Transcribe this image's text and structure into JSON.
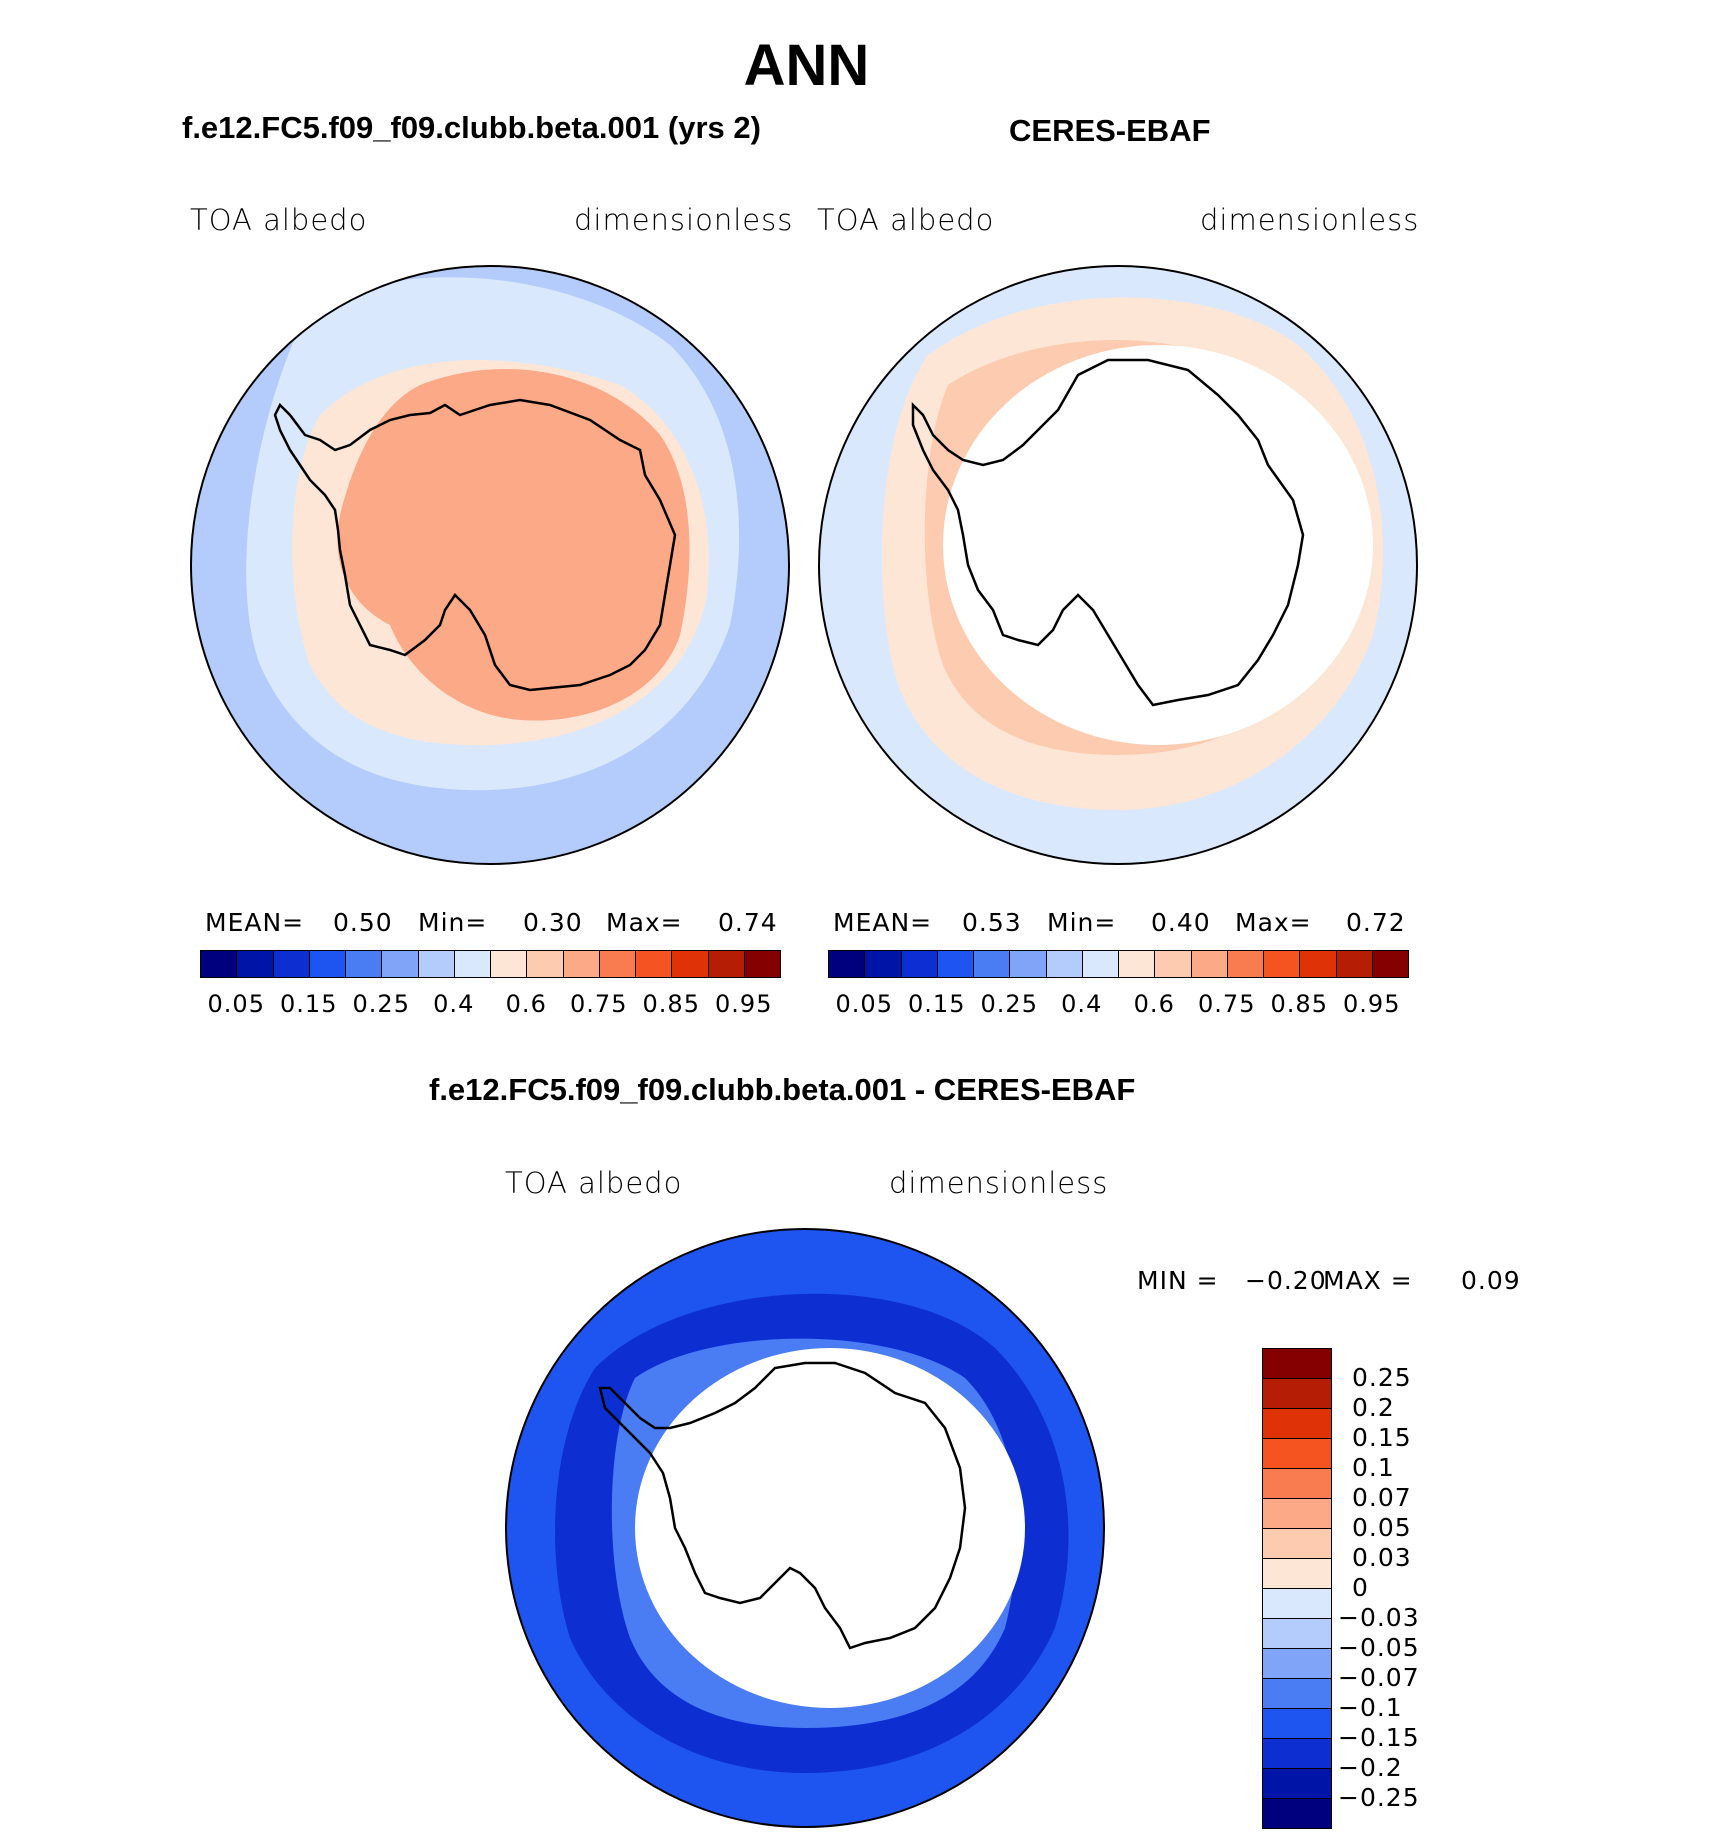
{
  "page": {
    "title": "ANN"
  },
  "panels": [
    {
      "case_title": "f.e12.FC5.f09_f09.clubb.beta.001 (yrs 2)",
      "variable": "TOA albedo",
      "units": "dimensionless",
      "stats": {
        "mean_label": "MEAN=",
        "mean": "0.50",
        "min_label": "Min=",
        "min": "0.30",
        "max_label": "Max=",
        "max": "0.74"
      }
    },
    {
      "case_title": "CERES-EBAF",
      "variable": "TOA albedo",
      "units": "dimensionless",
      "stats": {
        "mean_label": "MEAN=",
        "mean": "0.53",
        "min_label": "Min=",
        "min": "0.40",
        "max_label": "Max=",
        "max": "0.72"
      }
    }
  ],
  "diff_panel": {
    "case_title": "f.e12.FC5.f09_f09.clubb.beta.001 - CERES-EBAF",
    "variable": "TOA albedo",
    "units": "dimensionless",
    "stats": {
      "min_label": "MIN =",
      "min": "−0.20",
      "max_label": "MAX =",
      "max": "0.09"
    }
  },
  "horizontal_colorbar": {
    "colors": [
      "#00007f",
      "#0015a8",
      "#0d2fd2",
      "#1e55f0",
      "#4a7cf4",
      "#7fa4f8",
      "#b4ccfb",
      "#d9e8fd",
      "#fde6d6",
      "#fccbb0",
      "#fba986",
      "#f97c50",
      "#f5531f",
      "#df3206",
      "#b51e05",
      "#850000"
    ],
    "tick_labels": [
      "0.05",
      "0.15",
      "0.25",
      "0.4",
      "0.6",
      "0.75",
      "0.85",
      "0.95"
    ]
  },
  "vertical_colorbar": {
    "colors_top_to_bottom": [
      "#850000",
      "#b51e05",
      "#df3206",
      "#f5531f",
      "#f97c50",
      "#fba986",
      "#fccbb0",
      "#fde6d6",
      "#d9e8fd",
      "#b4ccfb",
      "#7fa4f8",
      "#4a7cf4",
      "#1e55f0",
      "#0d2fd2",
      "#0015a8",
      "#00007f"
    ],
    "tick_labels": [
      "0.25",
      "0.2",
      "0.15",
      "0.1",
      "0.07",
      "0.05",
      "0.03",
      "0",
      "−0.03",
      "−0.05",
      "−0.07",
      "−0.1",
      "−0.15",
      "−0.2",
      "−0.25"
    ]
  },
  "map_colors": {
    "ocean_outer": "#b4ccfb",
    "ocean_mid": "#d9e8fd",
    "ice_light": "#fde6d6",
    "ice_mid": "#fccbb0",
    "ice_high": "#fba986",
    "diff_outer": "#1e55f0",
    "diff_mid": "#0d2fd2",
    "diff_light": "#4a7cf4",
    "no_data": "#ffffff",
    "coast": "#000000"
  }
}
